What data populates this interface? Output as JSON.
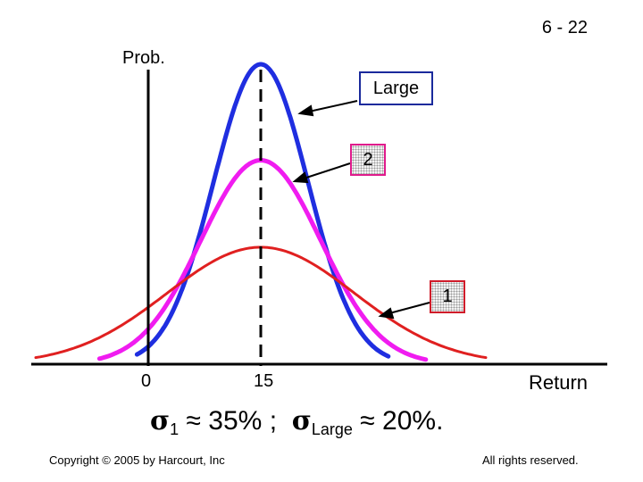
{
  "slide_number": "6 - 22",
  "copyright": "Copyright © 2005 by Harcourt, Inc",
  "rights": "All rights reserved.",
  "formula": {
    "sigma_symbol": "σ",
    "sub_1": "1",
    "approx": "≈",
    "value_1": "35%",
    "separator": ";",
    "sub_large": "Large",
    "value_large": "20%."
  },
  "chart_data": {
    "type": "line",
    "ylabel": "Prob.",
    "xlabel": "Return",
    "xticks": [
      {
        "value": 0,
        "label": "0"
      },
      {
        "value": 15,
        "label": "15"
      }
    ],
    "xlim": [
      -15,
      45
    ],
    "ylim": [
      0,
      1
    ],
    "grid": false,
    "mean_line": {
      "x": 15,
      "style": "dashed"
    },
    "series": [
      {
        "name": "Large",
        "color": "#1f2ee0",
        "mean": 15,
        "spread": 6.3,
        "peak": 1.0
      },
      {
        "name": "2",
        "color": "#f01cf0",
        "mean": 15,
        "spread": 8.0,
        "peak": 0.68
      },
      {
        "name": "1",
        "color": "#e02020",
        "mean": 15,
        "spread": 12.5,
        "peak": 0.39
      }
    ]
  },
  "colors": {
    "large": "#1f2ee0",
    "two": "#f01cf0",
    "one": "#e02020",
    "label_border": "#1a2a9c"
  }
}
